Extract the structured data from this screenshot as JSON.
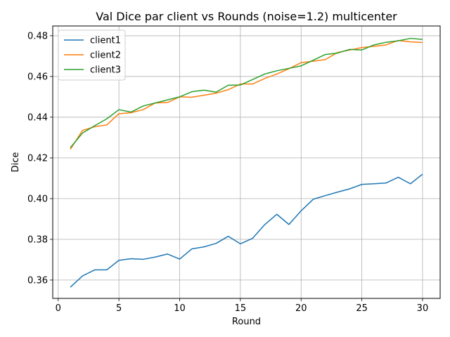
{
  "chart_data": {
    "type": "line",
    "title": "Val Dice par client vs Rounds (noise=1.2) multicenter",
    "xlabel": "Round",
    "ylabel": "Dice",
    "xlim": [
      -0.45,
      31.45
    ],
    "ylim": [
      0.351,
      0.4848
    ],
    "xticks": [
      0,
      5,
      10,
      15,
      20,
      25,
      30
    ],
    "xtick_labels": [
      "0",
      "5",
      "10",
      "15",
      "20",
      "25",
      "30"
    ],
    "yticks": [
      0.36,
      0.38,
      0.4,
      0.42,
      0.44,
      0.46,
      0.48
    ],
    "ytick_labels": [
      "0.36",
      "0.38",
      "0.40",
      "0.42",
      "0.44",
      "0.46",
      "0.48"
    ],
    "grid": true,
    "legend_position": "top-left",
    "x": [
      1,
      2,
      3,
      4,
      5,
      6,
      7,
      8,
      9,
      10,
      11,
      12,
      13,
      14,
      15,
      16,
      17,
      18,
      19,
      20,
      21,
      22,
      23,
      24,
      25,
      26,
      27,
      28,
      29,
      30
    ],
    "series": [
      {
        "name": "client1",
        "color": "#1f77b4",
        "values": [
          0.3565,
          0.362,
          0.365,
          0.365,
          0.3697,
          0.3705,
          0.3702,
          0.3713,
          0.3728,
          0.3703,
          0.3753,
          0.3763,
          0.378,
          0.3815,
          0.3778,
          0.3805,
          0.3872,
          0.3923,
          0.3873,
          0.394,
          0.3997,
          0.4015,
          0.4032,
          0.4048,
          0.407,
          0.4073,
          0.4077,
          0.4105,
          0.4073,
          0.412
        ]
      },
      {
        "name": "client2",
        "color": "#ff7f0e",
        "values": [
          0.4242,
          0.4335,
          0.4353,
          0.4362,
          0.4417,
          0.4422,
          0.4437,
          0.447,
          0.4472,
          0.45,
          0.4498,
          0.4508,
          0.4518,
          0.4535,
          0.4563,
          0.4563,
          0.459,
          0.4612,
          0.4638,
          0.4668,
          0.4675,
          0.4683,
          0.4718,
          0.473,
          0.4742,
          0.4748,
          0.4755,
          0.4777,
          0.477,
          0.4767
        ]
      },
      {
        "name": "client3",
        "color": "#2ca02c",
        "values": [
          0.425,
          0.4322,
          0.4358,
          0.4392,
          0.4437,
          0.4425,
          0.4455,
          0.447,
          0.4485,
          0.45,
          0.4525,
          0.4533,
          0.4523,
          0.4557,
          0.4558,
          0.4585,
          0.4612,
          0.4628,
          0.464,
          0.4652,
          0.468,
          0.4708,
          0.4715,
          0.4733,
          0.473,
          0.4755,
          0.4768,
          0.4775,
          0.4787,
          0.4782
        ]
      }
    ]
  }
}
